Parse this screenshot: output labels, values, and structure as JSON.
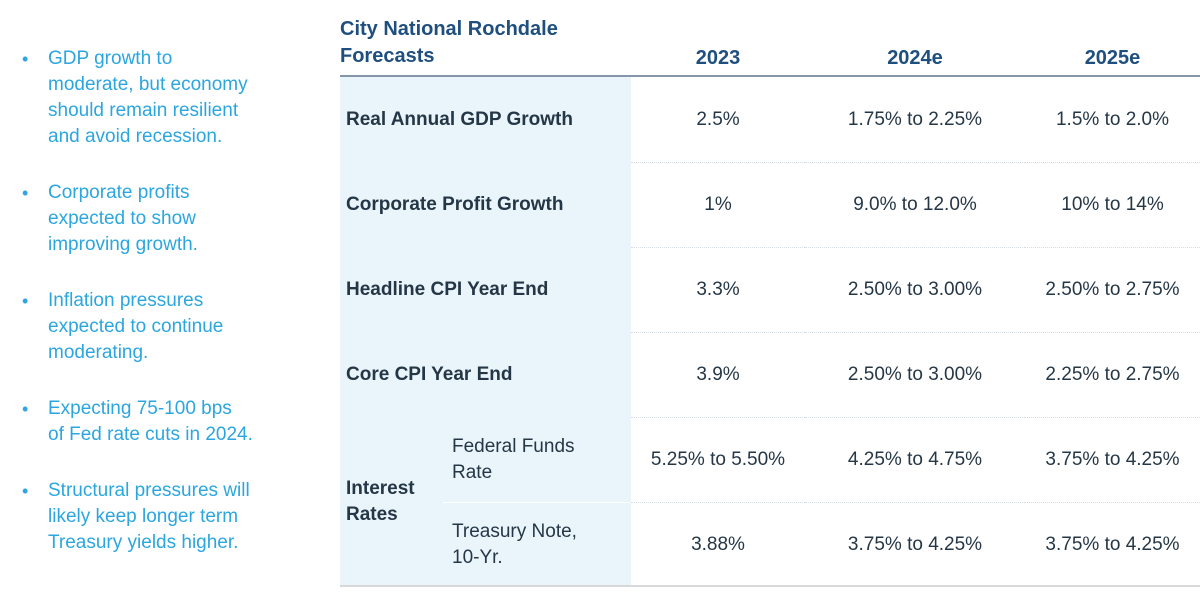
{
  "bullets": [
    "GDP growth to\nmoderate, but economy\nshould remain resilient\nand avoid recession.",
    "Corporate profits\nexpected to show\nimproving growth.",
    "Inflation pressures\nexpected to continue\nmoderating.",
    "Expecting 75-100 bps\nof Fed rate cuts in 2024.",
    "Structural pressures will\nlikely keep longer term\nTreasury yields higher."
  ],
  "bullet_marker": "•",
  "table": {
    "title": "City National Rochdale\nForecasts",
    "columns": [
      "2023",
      "2024e",
      "2025e"
    ],
    "rows": [
      {
        "label": "Real Annual GDP Growth",
        "values": [
          "2.5%",
          "1.75% to 2.25%",
          "1.5% to 2.0%"
        ]
      },
      {
        "label": "Corporate Profit Growth",
        "values": [
          "1%",
          "9.0% to 12.0%",
          "10% to 14%"
        ]
      },
      {
        "label": "Headline CPI Year End",
        "values": [
          "3.3%",
          "2.50% to 3.00%",
          "2.50% to 2.75%"
        ]
      },
      {
        "label": "Core CPI Year End",
        "values": [
          "3.9%",
          "2.50% to 3.00%",
          "2.25% to 2.75%"
        ]
      },
      {
        "group": "Interest\nRates",
        "sublabel": "Federal Funds\nRate",
        "values": [
          "5.25% to 5.50%",
          "4.25% to 4.75%",
          "3.75% to 4.25%"
        ]
      },
      {
        "sublabel": "Treasury Note,\n10-Yr.",
        "values": [
          "3.88%",
          "3.75% to 4.25%",
          "3.75% to 4.25%"
        ]
      }
    ]
  },
  "colors": {
    "bullet_text": "#2BA6DF",
    "heading_navy": "#1E4F7E",
    "body_text": "#253746",
    "label_column_bg": "#EAF4FB",
    "header_rule": "#8696AA",
    "table_bottom_border": "#D8D8D8",
    "row_separator_dotted": "#D5DBE2"
  }
}
